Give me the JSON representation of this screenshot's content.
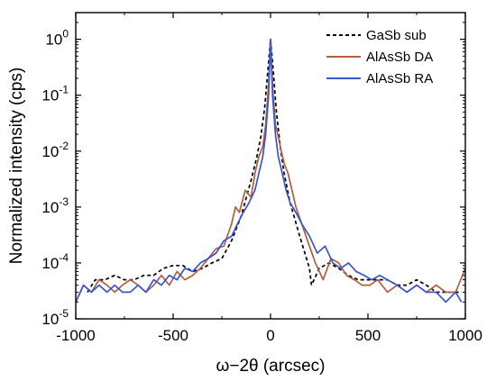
{
  "chart_data": {
    "type": "line",
    "xlabel": "ω−2θ (arcsec)",
    "ylabel": "Normalized intensity (cps)",
    "xlim": [
      -1000,
      1000
    ],
    "ylim": [
      1e-05,
      3
    ],
    "yscale": "log",
    "x_ticks": [
      -1000,
      -500,
      0,
      500,
      1000
    ],
    "x_tick_labels": [
      "-1000",
      "-500",
      "0",
      "500",
      "1000"
    ],
    "y_ticks": [
      1e-05,
      0.0001,
      0.001,
      0.01,
      0.1,
      1
    ],
    "y_tick_labels": [
      {
        "base": "10",
        "exp": "-5"
      },
      {
        "base": "10",
        "exp": "-4"
      },
      {
        "base": "10",
        "exp": "-3"
      },
      {
        "base": "10",
        "exp": "-2"
      },
      {
        "base": "10",
        "exp": "-1"
      },
      {
        "base": "10",
        "exp": "0"
      }
    ],
    "legend_position": "top-right",
    "grid": false,
    "series": [
      {
        "name": "GaSb sub",
        "color": "#000000",
        "style": "dashed",
        "x": [
          -940,
          -900,
          -850,
          -800,
          -750,
          -700,
          -650,
          -600,
          -550,
          -500,
          -450,
          -400,
          -350,
          -300,
          -250,
          -200,
          -150,
          -100,
          -70,
          -50,
          -30,
          -15,
          0,
          15,
          30,
          50,
          70,
          100,
          150,
          200,
          210,
          250,
          300,
          350,
          400,
          450,
          500,
          550,
          600,
          650,
          700,
          750,
          800,
          850,
          900,
          950,
          980
        ],
        "y": [
          3e-05,
          5e-05,
          5e-05,
          6e-05,
          5e-05,
          5e-05,
          6e-05,
          6e-05,
          8e-05,
          9e-05,
          9e-05,
          7e-05,
          8e-05,
          0.0001,
          0.00012,
          0.00025,
          0.0007,
          0.003,
          0.008,
          0.018,
          0.06,
          0.25,
          1.0,
          0.25,
          0.05,
          0.012,
          0.004,
          0.0012,
          0.0003,
          8e-05,
          4e-05,
          8e-05,
          0.0001,
          8e-05,
          6e-05,
          5e-05,
          5e-05,
          5e-05,
          5e-05,
          4e-05,
          4e-05,
          5e-05,
          4e-05,
          3e-05,
          3e-05,
          3e-05,
          3e-05
        ]
      },
      {
        "name": "AlAsSb DA",
        "color": "#b06040",
        "style": "solid",
        "x": [
          -1000,
          -960,
          -920,
          -880,
          -840,
          -800,
          -760,
          -720,
          -680,
          -640,
          -600,
          -560,
          -520,
          -480,
          -440,
          -400,
          -360,
          -320,
          -280,
          -240,
          -200,
          -180,
          -160,
          -130,
          -100,
          -80,
          -60,
          -40,
          -25,
          -10,
          0,
          10,
          25,
          40,
          55,
          70,
          90,
          110,
          130,
          160,
          190,
          230,
          270,
          310,
          350,
          390,
          430,
          470,
          510,
          550,
          600,
          650,
          700,
          750,
          800,
          850,
          900,
          950,
          1000
        ],
        "y": [
          2e-05,
          4e-05,
          3e-05,
          5e-05,
          4e-05,
          3e-05,
          4e-05,
          5e-05,
          4e-05,
          3e-05,
          4e-05,
          6e-05,
          4e-05,
          7e-05,
          5e-05,
          6e-05,
          8e-05,
          0.00012,
          0.00018,
          0.0002,
          0.0005,
          0.001,
          0.0008,
          0.002,
          0.0015,
          0.004,
          0.008,
          0.012,
          0.03,
          0.15,
          1.0,
          0.15,
          0.03,
          0.018,
          0.01,
          0.006,
          0.004,
          0.002,
          0.001,
          0.0005,
          0.00025,
          0.0001,
          5e-05,
          0.00012,
          0.0001,
          6e-05,
          5e-05,
          4e-05,
          4e-05,
          5e-05,
          3e-05,
          4e-05,
          3e-05,
          4e-05,
          3e-05,
          4e-05,
          3e-05,
          3e-05,
          8e-05
        ]
      },
      {
        "name": "AlAsSb RA",
        "color": "#3a56d0",
        "style": "solid",
        "x": [
          -1000,
          -960,
          -920,
          -880,
          -840,
          -800,
          -760,
          -720,
          -680,
          -640,
          -600,
          -560,
          -520,
          -480,
          -440,
          -400,
          -360,
          -320,
          -280,
          -240,
          -200,
          -170,
          -140,
          -110,
          -80,
          -60,
          -40,
          -25,
          -10,
          0,
          10,
          25,
          40,
          60,
          80,
          100,
          130,
          160,
          200,
          240,
          280,
          320,
          360,
          400,
          440,
          480,
          520,
          560,
          600,
          650,
          700,
          750,
          800,
          850,
          900,
          950,
          980
        ],
        "y": [
          2e-05,
          4e-05,
          3e-05,
          4e-05,
          3e-05,
          4e-05,
          3e-05,
          3e-05,
          4e-05,
          3e-05,
          5e-05,
          4e-05,
          6e-05,
          5e-05,
          8e-05,
          7e-05,
          0.0001,
          0.00012,
          0.00015,
          0.00025,
          0.0003,
          0.0005,
          0.0008,
          0.0012,
          0.002,
          0.004,
          0.008,
          0.02,
          0.1,
          1.0,
          0.1,
          0.02,
          0.008,
          0.004,
          0.002,
          0.0012,
          0.0008,
          0.0005,
          0.0003,
          0.00015,
          0.0002,
          0.0001,
          8e-05,
          0.0001,
          7e-05,
          6e-05,
          5e-05,
          6e-05,
          5e-05,
          4e-05,
          3e-05,
          4e-05,
          3e-05,
          3e-05,
          2e-05,
          3e-05,
          2e-05
        ]
      }
    ]
  }
}
